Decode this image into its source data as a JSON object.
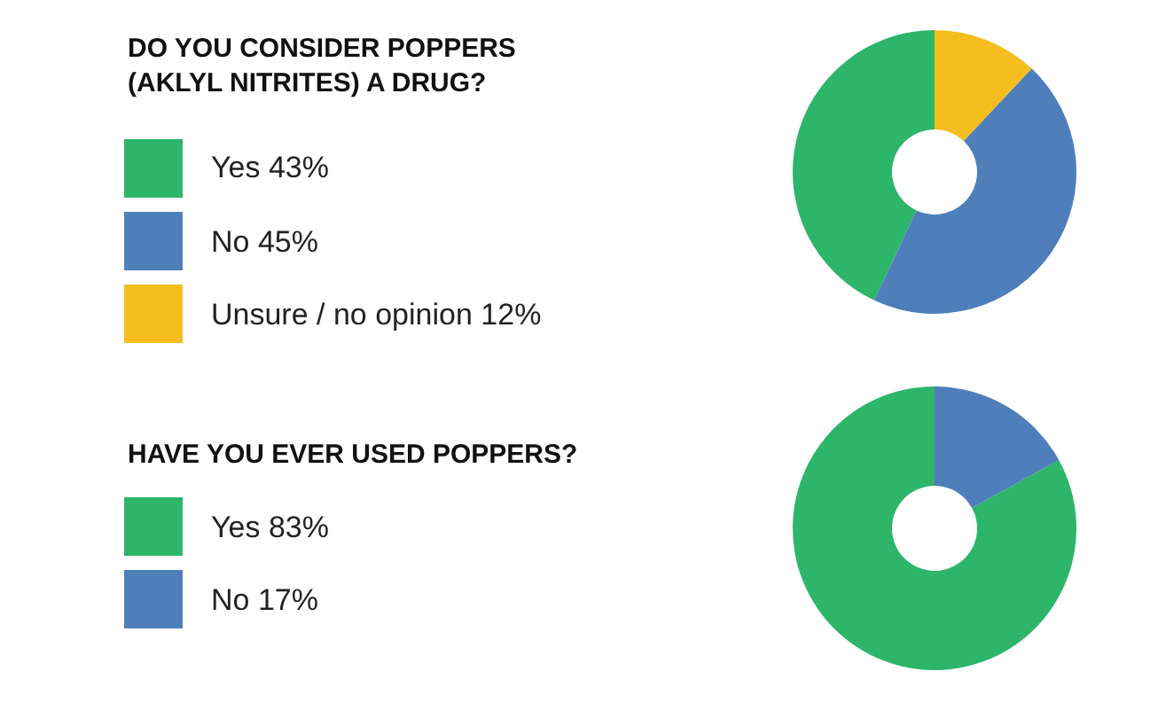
{
  "chart_data": [
    {
      "type": "donut",
      "title": "DO YOU CONSIDER POPPERS\n(AKLYL NITRITES) A DRUG?",
      "categories": [
        "Yes",
        "No",
        "Unsure / no opinion"
      ],
      "values": [
        43,
        45,
        12
      ],
      "value_labels": [
        "43%",
        "45%",
        "12%"
      ],
      "colors": [
        "#2db56a",
        "#4f7fbb",
        "#f5be1e"
      ],
      "legend": "left"
    },
    {
      "type": "donut",
      "title": "HAVE YOU EVER USED POPPERS?",
      "categories": [
        "Yes",
        "No"
      ],
      "values": [
        83,
        17
      ],
      "value_labels": [
        "83%",
        "17%"
      ],
      "colors": [
        "#2db56a",
        "#4f7fbb"
      ],
      "legend": "left"
    }
  ]
}
